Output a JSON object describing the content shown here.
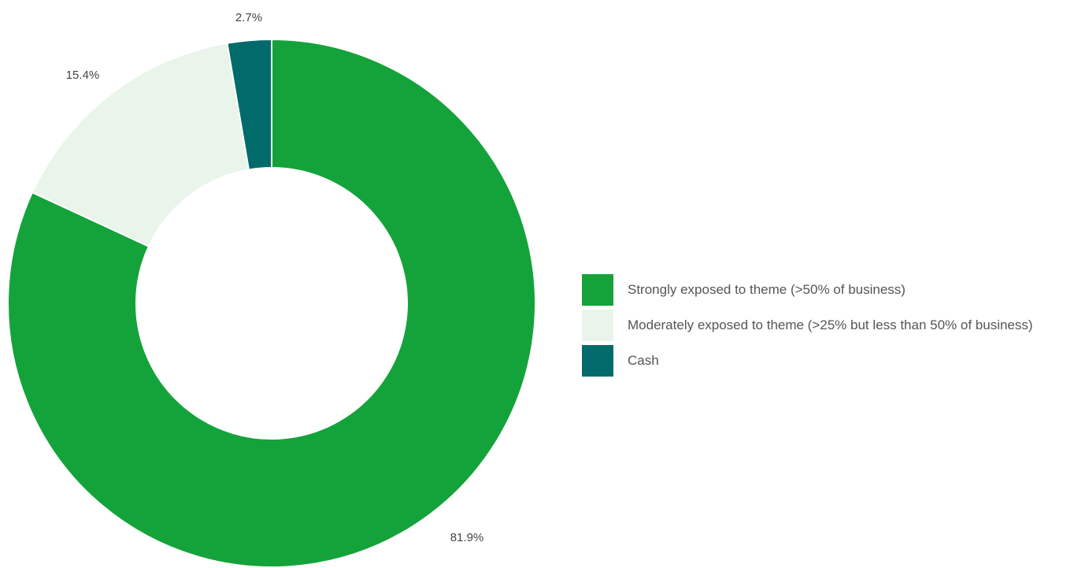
{
  "chart_data": {
    "type": "pie",
    "style": "donut",
    "categories": [
      "Strongly exposed to theme (>50% of business)",
      "Moderately exposed to theme (>25% but less than 50% of business)",
      "Cash"
    ],
    "values": [
      81.9,
      15.4,
      2.7
    ],
    "labels": [
      "81.9%",
      "15.4%",
      "2.7%"
    ],
    "colors": [
      "#14a33a",
      "#e9f4ea",
      "#016b6b"
    ],
    "legend_position": "right"
  }
}
